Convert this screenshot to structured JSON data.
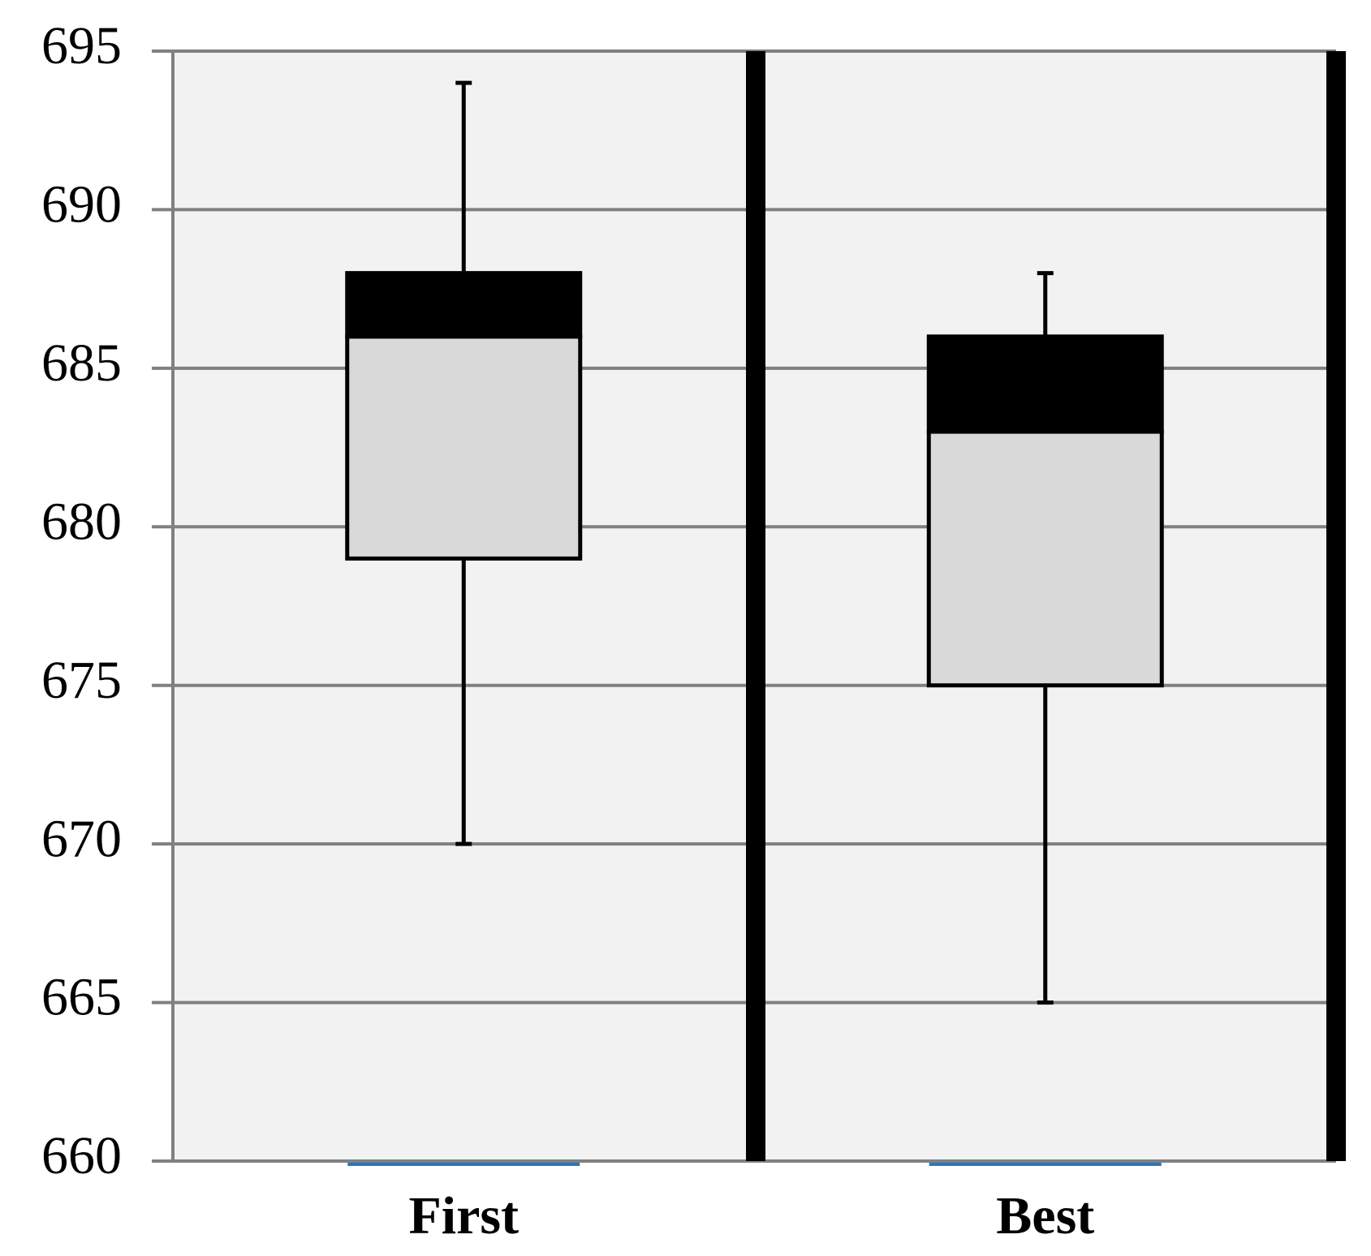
{
  "chart_data": {
    "type": "box",
    "categories": [
      "First",
      "Best"
    ],
    "boxes": [
      {
        "min": 670,
        "q1": 679,
        "median": 686,
        "q3": 688,
        "max": 694
      },
      {
        "min": 665,
        "q1": 675,
        "median": 683,
        "q3": 686,
        "max": 688
      }
    ],
    "lower_color": "#d9d9d9",
    "upper_color": "#000000",
    "ylim": [
      660,
      695
    ],
    "yticks": [
      660,
      665,
      670,
      675,
      680,
      685,
      690,
      695
    ],
    "grid": true
  }
}
